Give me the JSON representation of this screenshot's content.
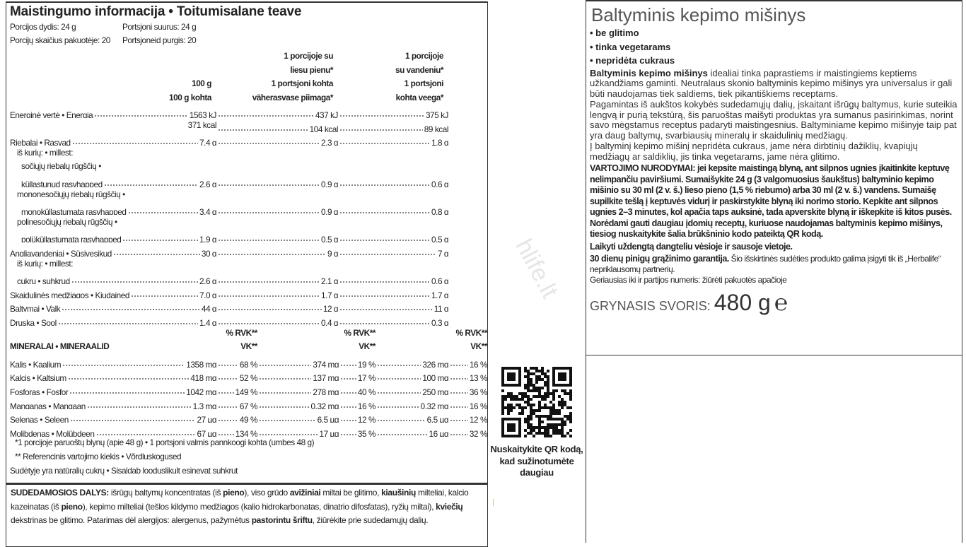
{
  "nutrition": {
    "title": "Maistingumo informacija • Toitumisalane teave",
    "portion_size_lt": "Porcijos dydis: 24 g",
    "portion_size_et": "Portsjoni suurus: 24 g",
    "portions_lt": "Porcijų skaičius pakuotėje: 20",
    "portions_et": "Portsjoneid purgis: 20",
    "headers": [
      [
        "100 g",
        "100 g kohta"
      ],
      [
        "1 porcijoje su",
        "liesu pienu*",
        "1 portsjoni kohta",
        "väherasvase piimaga*"
      ],
      [
        "1 porcijoje",
        "su vandeniu*",
        "1 portsjoni",
        "kohta veega*"
      ]
    ],
    "rows": [
      {
        "label": "Energinė vertė • Energia",
        "level": 0,
        "values": [
          "1563 kJ",
          "437 kJ",
          "375 kJ"
        ]
      },
      {
        "label": "",
        "level": 0,
        "values": [
          "371 kcal",
          "104 kcal",
          "89 kcal"
        ]
      },
      {
        "label": "Riebalai • Rasvad",
        "level": 0,
        "values": [
          "7,4 g",
          "2,3 g",
          "1,8 g"
        ]
      },
      {
        "label": "iš kurių: • millest:",
        "level": 1,
        "values": []
      },
      {
        "label": "sočiųjų riebalų rūgščių •",
        "level": 2,
        "values": []
      },
      {
        "label": "küllastunud rasvhapped",
        "level": 2,
        "values": [
          "2,6 g",
          "0,9 g",
          "0,6 g"
        ]
      },
      {
        "label": "mononesočiųjų riebalų rūgščių •",
        "level": 1,
        "values": []
      },
      {
        "label": "monoküllastumata rasvhapped",
        "level": 2,
        "values": [
          "3,4 g",
          "0,9 g",
          "0,8 g"
        ]
      },
      {
        "label": "polinesočiųjų riebalų rūgščių •",
        "level": 1,
        "values": []
      },
      {
        "label": "polüküllastumata rasvhapped",
        "level": 2,
        "values": [
          "1,9 g",
          "0,5 g",
          "0,5 g"
        ]
      },
      {
        "label": "Angliavandeniai • Süsivesikud",
        "level": 0,
        "values": [
          "30 g",
          "9 g",
          "7 g"
        ]
      },
      {
        "label": "iš kurių: • millest:",
        "level": 1,
        "values": []
      },
      {
        "label": "cukrų • suhkrud",
        "level": 1,
        "values": [
          "2,6 g",
          "2,1 g",
          "0,6 g"
        ]
      },
      {
        "label": "Skaidulinės medžiagos • Kiudained",
        "level": 0,
        "values": [
          "7,0 g",
          "1,7 g",
          "1,7 g"
        ]
      },
      {
        "label": "Baltymai • Valk",
        "level": 0,
        "values": [
          "44 g",
          "12 g",
          "11 g"
        ]
      },
      {
        "label": "Druska • Sool",
        "level": 0,
        "values": [
          "1,4 g",
          "0,4 g",
          "0,3 g"
        ]
      }
    ],
    "rvk_label": "% RVK**",
    "vk_label": "VK**",
    "minerals_title": "MINERALAI • MINERAALID",
    "minerals": [
      {
        "label": "Kalis • Kaalium",
        "values": [
          "1358 mg",
          "68 %",
          "374 mg",
          "19 %",
          "326 mg",
          "16 %"
        ]
      },
      {
        "label": "Kalcis • Kaltsium",
        "values": [
          "418 mg",
          "52 %",
          "137 mg",
          "17 %",
          "100 mg",
          "13 %"
        ]
      },
      {
        "label": "Fosforas • Fosfor",
        "values": [
          "1042 mg",
          "149 %",
          "278 mg",
          "40 %",
          "250 mg",
          "36 %"
        ]
      },
      {
        "label": "Manganas • Mangaan",
        "values": [
          "1,3 mg",
          "67 %",
          "0,32 mg",
          "16 %",
          "0,32 mg",
          "16 %"
        ]
      },
      {
        "label": "Selenas • Seleen",
        "values": [
          "27 µg",
          "49 %",
          "6,5 µg",
          "12 %",
          "6,5 µg",
          "12 %"
        ]
      },
      {
        "label": "Molibdenas • Molübdeen",
        "values": [
          "67 µg",
          "134 %",
          "17 µg",
          "35 %",
          "16 µg",
          "32 %"
        ]
      }
    ],
    "footnotes": [
      "*1 porcijoje paruoštų blynų (apie 48 g) • 1 portsjoni valmis pannkoogi kohta (umbes 48 g)",
      "** Referencinis vartojimo kiekis • Võrdluskogused",
      "Sudėtyje yra natūralių cukrų • Sisaldab looduslikult esinevat suhkrut"
    ]
  },
  "ingredients": {
    "label": "SUDEDAMOSIOS DALYS:",
    "parts": [
      {
        "t": " išrūgų baltymų koncentratas (iš ",
        "b": false
      },
      {
        "t": "pieno",
        "b": true
      },
      {
        "t": "), viso grūdo ",
        "b": false
      },
      {
        "t": "avižiniai",
        "b": true
      },
      {
        "t": " miltai be glitimo, ",
        "b": false
      },
      {
        "t": "kiaušinių",
        "b": true
      },
      {
        "t": " milteliai, kalcio kazeinatas (iš ",
        "b": false
      },
      {
        "t": "pieno",
        "b": true
      },
      {
        "t": "), kepimo milteliai (tešlos kildymo medžiagos (kalio hidrokarbonatas, dinatrio difosfatas), ryžių miltai), ",
        "b": false
      },
      {
        "t": "kviečių",
        "b": true
      },
      {
        "t": " dekstrinas be glitimo. Patarimas dėl alergijos: alergenus, pažymėtus ",
        "b": false
      },
      {
        "t": "pastorintu šriftu",
        "b": true
      },
      {
        "t": ", žiūrėkite prie sudedamųjų dalių.",
        "b": false
      }
    ]
  },
  "qr": {
    "icon": "qr-code-icon",
    "text": "Nuskaitykite QR kodą, kad sužinotumėte daugiau"
  },
  "watermark": "hlife.lt",
  "product": {
    "title": "Baltyminis kepimo mišinys",
    "bullets": [
      "• be glitimo",
      "• tinka vegetarams",
      "• nepridėta cukraus"
    ],
    "intro_bold": "Baltyminis kepimo mišinys",
    "intro": " idealiai tinka paprastiems ir maistingiems keptiems užkandžiams gaminti. Neutralaus skonio baltyminis kepimo mišinys yra universalus ir gali būti naudojamas tiek saldiems, tiek pikantiškiems receptams.",
    "p2": "Pagamintas iš aukštos kokybės sudedamųjų dalių, įskaitant išrūgų baltymus, kurie suteikia lengvą ir purią tekstūrą, šis paruoštas maišyti produktas yra sumanus pasirinkimas, norint savo mėgstamus receptus padaryti maistingesnius. Baltyminiame kepimo mišinyje taip pat yra daug baltymų, svarbiausių mineralų ir skaidulinių medžiagų.",
    "p3": "Į baltyminį kepimo mišinį nepridėta cukraus, jame nėra dirbtinių dažiklių, kvapiųjų medžiagų ar saldiklių, jis tinka vegetarams, jame nėra glitimo.",
    "instructions": "VARTOJIMO NURODYMAI: jei kepsite maistingą blyną, ant silpnos ugnies įkaitinkite keptuvę nelimpančiu paviršiumi. Sumaišykite 24 g (3 valgomuosius šaukštus) baltyminio kepimo mišinio su 30 ml (2 v. š.) lieso pieno (1,5 % riebumo) arba 30 ml (2 v. š.) vandens. Sumaišę supilkite tešlą į keptuvės vidurį ir paskirstykite blyną iki norimo storio. Kepkite ant silpnos ugnies 2–3 minutes, kol apačia taps auksinė, tada apverskite blyną ir iškepkite iš kitos pusės. Norėdami gauti daugiau įdomių receptų, kuriuose naudojamas baltyminis kepimo mišinys, tiesiog nuskaitykite šalia brūkšninio kodo pateiktą QR kodą.",
    "storage": "Laikyti uždengtą dangteliu vėsioje ir sausoje vietoje.",
    "guarantee_bold": "30 dienų pinigų grąžinimo garantija.",
    "guarantee": " Šio išskirtinės sudėties produkto galima įsigyti tik iš „Herbalife“ nepriklausomų partnerių.",
    "best_before": "Geriausias iki ir partijos numeris: žiūrėti pakuotės apačioje",
    "net_label": "GRYNASIS SVORIS: ",
    "net_value": "480 g",
    "e_mark": "℮"
  }
}
